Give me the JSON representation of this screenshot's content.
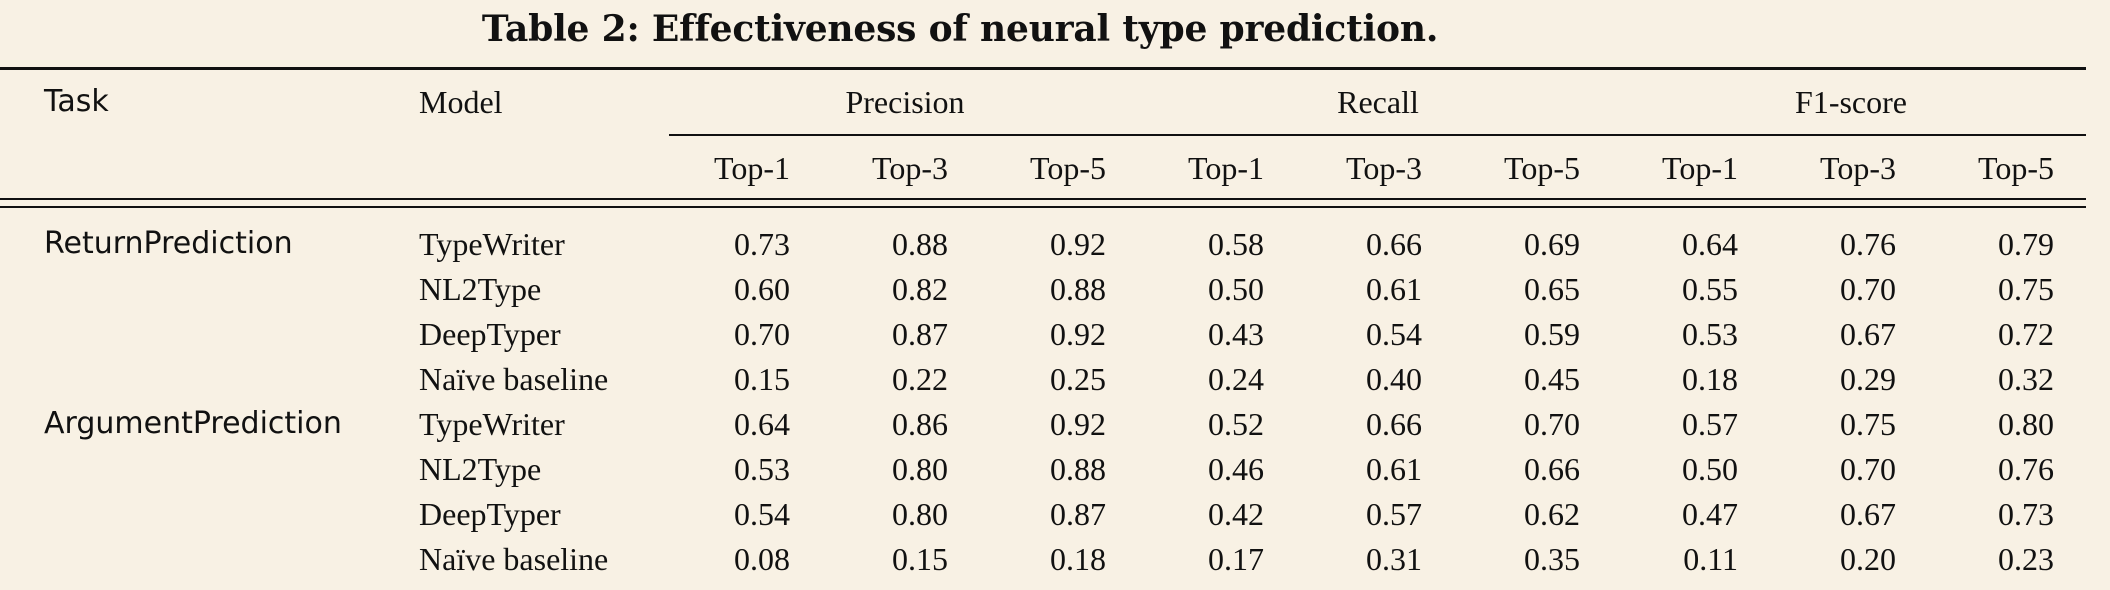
{
  "caption": "Table 2: Effectiveness of neural type prediction.",
  "table": {
    "header": {
      "task": "Task",
      "model": "Model",
      "groups": [
        "Precision",
        "Recall",
        "F1-score"
      ],
      "subheaders": [
        "Top-1",
        "Top-3",
        "Top-5",
        "Top-1",
        "Top-3",
        "Top-5",
        "Top-1",
        "Top-3",
        "Top-5"
      ]
    },
    "rows": [
      {
        "task": "ReturnPrediction",
        "model": "TypeWriter",
        "values": [
          "0.73",
          "0.88",
          "0.92",
          "0.58",
          "0.66",
          "0.69",
          "0.64",
          "0.76",
          "0.79"
        ]
      },
      {
        "task": "",
        "model": "NL2Type",
        "values": [
          "0.60",
          "0.82",
          "0.88",
          "0.50",
          "0.61",
          "0.65",
          "0.55",
          "0.70",
          "0.75"
        ]
      },
      {
        "task": "",
        "model": "DeepTyper",
        "values": [
          "0.70",
          "0.87",
          "0.92",
          "0.43",
          "0.54",
          "0.59",
          "0.53",
          "0.67",
          "0.72"
        ]
      },
      {
        "task": "",
        "model": "Naïve baseline",
        "values": [
          "0.15",
          "0.22",
          "0.25",
          "0.24",
          "0.40",
          "0.45",
          "0.18",
          "0.29",
          "0.32"
        ]
      },
      {
        "task": "ArgumentPrediction",
        "model": "TypeWriter",
        "values": [
          "0.64",
          "0.86",
          "0.92",
          "0.52",
          "0.66",
          "0.70",
          "0.57",
          "0.75",
          "0.80"
        ]
      },
      {
        "task": "",
        "model": "NL2Type",
        "values": [
          "0.53",
          "0.80",
          "0.88",
          "0.46",
          "0.61",
          "0.66",
          "0.50",
          "0.70",
          "0.76"
        ]
      },
      {
        "task": "",
        "model": "DeepTyper",
        "values": [
          "0.54",
          "0.80",
          "0.87",
          "0.42",
          "0.57",
          "0.62",
          "0.47",
          "0.67",
          "0.73"
        ]
      },
      {
        "task": "",
        "model": "Naïve baseline",
        "values": [
          "0.08",
          "0.15",
          "0.18",
          "0.17",
          "0.31",
          "0.35",
          "0.11",
          "0.20",
          "0.23"
        ]
      }
    ]
  }
}
